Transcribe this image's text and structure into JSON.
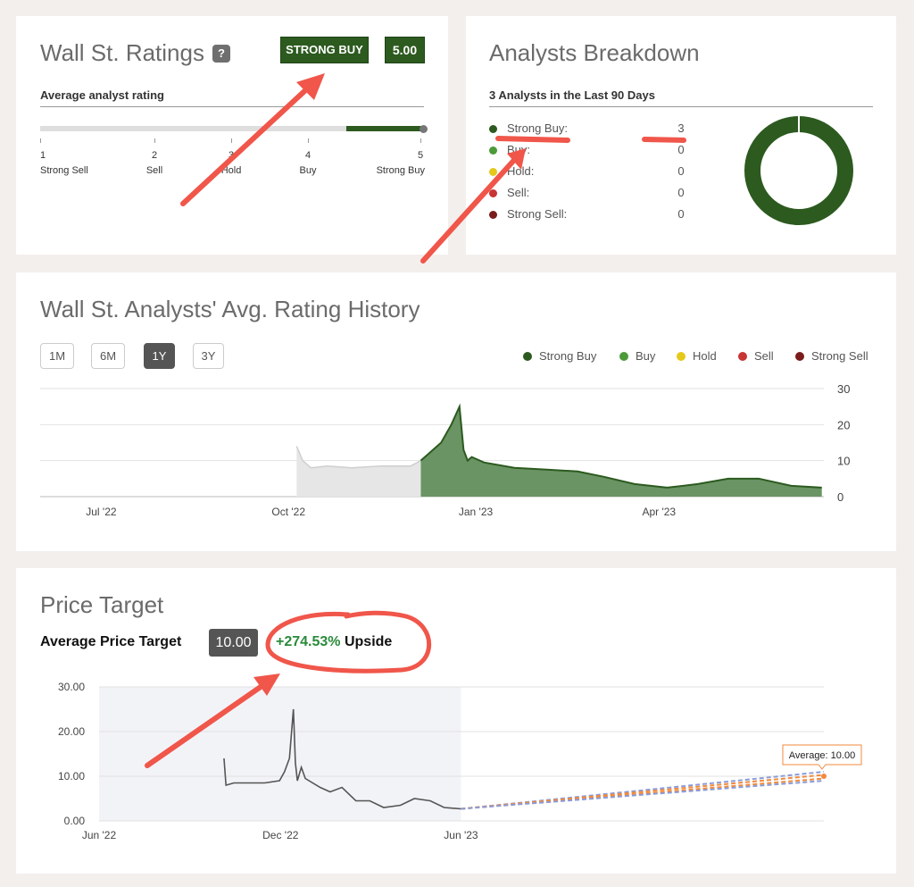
{
  "ratings": {
    "title": "Wall St. Ratings",
    "help": "?",
    "consensus": "STRONG BUY",
    "score": "5.00",
    "score_value": 5.0,
    "subtitle": "Average analyst rating",
    "scale": [
      {
        "num": "1",
        "label": "Strong Sell"
      },
      {
        "num": "2",
        "label": "Sell"
      },
      {
        "num": "3",
        "label": "Hold"
      },
      {
        "num": "4",
        "label": "Buy"
      },
      {
        "num": "5",
        "label": "Strong Buy"
      }
    ]
  },
  "breakdown": {
    "title": "Analysts Breakdown",
    "subtitle": "3 Analysts in the Last 90 Days",
    "rows": [
      {
        "label": "Strong Buy:",
        "count": "3",
        "color": "#2c5a1f"
      },
      {
        "label": "Buy:",
        "count": "0",
        "color": "#4c9a3a"
      },
      {
        "label": "Hold:",
        "count": "0",
        "color": "#e5c81a"
      },
      {
        "label": "Sell:",
        "count": "0",
        "color": "#c83535"
      },
      {
        "label": "Strong Sell:",
        "count": "0",
        "color": "#7a1c1c"
      }
    ]
  },
  "history": {
    "title": "Wall St. Analysts' Avg. Rating History",
    "ranges": [
      "1M",
      "6M",
      "1Y",
      "3Y"
    ],
    "active_range": "1Y",
    "legend": [
      {
        "label": "Strong Buy",
        "color": "#2c5a1f"
      },
      {
        "label": "Buy",
        "color": "#4c9a3a"
      },
      {
        "label": "Hold",
        "color": "#e5c81a"
      },
      {
        "label": "Sell",
        "color": "#c83535"
      },
      {
        "label": "Strong Sell",
        "color": "#7a1c1c"
      }
    ]
  },
  "price_target": {
    "title": "Price Target",
    "avg_label": "Average Price Target",
    "avg_value": "10.00",
    "upside_pct": "+274.53%",
    "upside_word": "Upside",
    "tooltip": "Average: 10.00"
  },
  "chart_data": [
    {
      "type": "area",
      "title": "Wall St. Analysts' Avg. Rating History",
      "x_ticks": [
        "Jul '22",
        "Oct '22",
        "Jan '23",
        "Apr '23"
      ],
      "y_ticks": [
        "0",
        "10",
        "20",
        "30"
      ],
      "ylim": [
        0,
        30
      ],
      "grid": true,
      "series": [
        {
          "name": "Strong Buy",
          "x": [
            "2022-10-05",
            "2022-10-08",
            "2022-10-12",
            "2022-10-20",
            "2022-11-01",
            "2022-11-15",
            "2022-11-30",
            "2022-12-05",
            "2022-12-15",
            "2022-12-20",
            "2022-12-24",
            "2022-12-26",
            "2022-12-28",
            "2022-12-30",
            "2023-01-05",
            "2023-01-20",
            "2023-02-05",
            "2023-02-20",
            "2023-03-05",
            "2023-03-20",
            "2023-04-05",
            "2023-04-20",
            "2023-05-05",
            "2023-05-20",
            "2023-06-05",
            "2023-06-20"
          ],
          "values": [
            14,
            10,
            8,
            8.5,
            8,
            8.5,
            8.5,
            10,
            15,
            20,
            25,
            13,
            10,
            11,
            9.5,
            8,
            7.5,
            7,
            5.5,
            3.5,
            2.5,
            3.5,
            5,
            5,
            3,
            2.5
          ]
        }
      ]
    },
    {
      "type": "line",
      "title": "Price Target",
      "x_ticks": [
        "Jun '22",
        "Dec '22",
        "Jun '23"
      ],
      "y_ticks": [
        "0.00",
        "10.00",
        "20.00",
        "30.00"
      ],
      "ylim": [
        0,
        30
      ],
      "grid": true,
      "series": [
        {
          "name": "price",
          "x": [
            "2022-10-05",
            "2022-10-07",
            "2022-10-15",
            "2022-11-01",
            "2022-11-15",
            "2022-11-30",
            "2022-12-05",
            "2022-12-10",
            "2022-12-14",
            "2022-12-16",
            "2022-12-18",
            "2022-12-22",
            "2022-12-26",
            "2023-01-10",
            "2023-01-20",
            "2023-02-01",
            "2023-02-15",
            "2023-03-01",
            "2023-03-15",
            "2023-04-01",
            "2023-04-15",
            "2023-05-01",
            "2023-05-15",
            "2023-06-01"
          ],
          "values": [
            14,
            8,
            8.5,
            8.5,
            8.5,
            9,
            11,
            14,
            25,
            13,
            9,
            12,
            9.5,
            7.5,
            6.5,
            7.5,
            4.5,
            4.5,
            3,
            3.5,
            5,
            4.5,
            3,
            2.7
          ]
        },
        {
          "name": "Average",
          "x": [
            "2023-06-01",
            "2024-06-01"
          ],
          "values": [
            2.7,
            10.0
          ]
        }
      ],
      "annotations": [
        "Average: 10.00"
      ]
    }
  ]
}
